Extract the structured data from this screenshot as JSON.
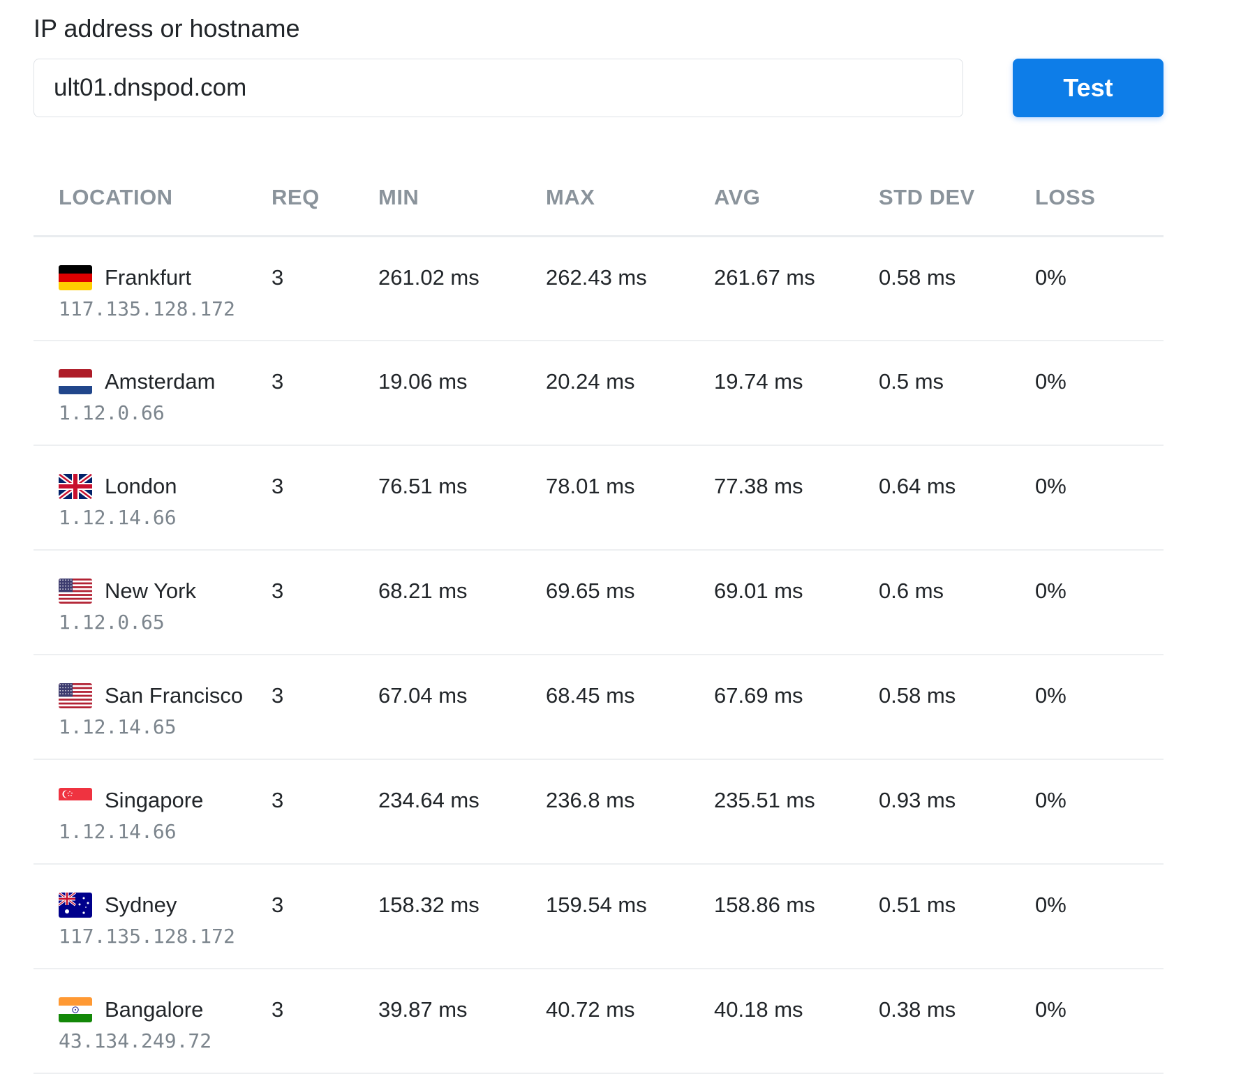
{
  "form": {
    "label": "IP address or hostname",
    "host_value": "ult01.dnspod.com",
    "submit_label": "Test"
  },
  "table": {
    "headers": {
      "location": "LOCATION",
      "req": "REQ",
      "min": "MIN",
      "max": "MAX",
      "avg": "AVG",
      "std_dev": "STD DEV",
      "loss": "LOSS"
    },
    "rows": [
      {
        "city": "Frankfurt",
        "flag": "germany-flag-icon",
        "ip": "117.135.128.172",
        "req": "3",
        "min": "261.02 ms",
        "max": "262.43 ms",
        "avg": "261.67 ms",
        "std_dev": "0.58 ms",
        "loss": "0%"
      },
      {
        "city": "Amsterdam",
        "flag": "netherlands-flag-icon",
        "ip": "1.12.0.66",
        "req": "3",
        "min": "19.06 ms",
        "max": "20.24 ms",
        "avg": "19.74 ms",
        "std_dev": "0.5 ms",
        "loss": "0%"
      },
      {
        "city": "London",
        "flag": "united-kingdom-flag-icon",
        "ip": "1.12.14.66",
        "req": "3",
        "min": "76.51 ms",
        "max": "78.01 ms",
        "avg": "77.38 ms",
        "std_dev": "0.64 ms",
        "loss": "0%"
      },
      {
        "city": "New York",
        "flag": "united-states-flag-icon",
        "ip": "1.12.0.65",
        "req": "3",
        "min": "68.21 ms",
        "max": "69.65 ms",
        "avg": "69.01 ms",
        "std_dev": "0.6 ms",
        "loss": "0%"
      },
      {
        "city": "San Francisco",
        "flag": "united-states-flag-icon",
        "ip": "1.12.14.65",
        "req": "3",
        "min": "67.04 ms",
        "max": "68.45 ms",
        "avg": "67.69 ms",
        "std_dev": "0.58 ms",
        "loss": "0%"
      },
      {
        "city": "Singapore",
        "flag": "singapore-flag-icon",
        "ip": "1.12.14.66",
        "req": "3",
        "min": "234.64 ms",
        "max": "236.8 ms",
        "avg": "235.51 ms",
        "std_dev": "0.93 ms",
        "loss": "0%"
      },
      {
        "city": "Sydney",
        "flag": "australia-flag-icon",
        "ip": "117.135.128.172",
        "req": "3",
        "min": "158.32 ms",
        "max": "159.54 ms",
        "avg": "158.86 ms",
        "std_dev": "0.51 ms",
        "loss": "0%"
      },
      {
        "city": "Bangalore",
        "flag": "india-flag-icon",
        "ip": "43.134.249.72",
        "req": "3",
        "min": "39.87 ms",
        "max": "40.72 ms",
        "avg": "40.18 ms",
        "std_dev": "0.38 ms",
        "loss": "0%"
      }
    ]
  },
  "colors": {
    "primary": "#0d7de8",
    "header_text": "#8a939b",
    "ip_text": "#7c858d",
    "divider": "#edeff1"
  }
}
